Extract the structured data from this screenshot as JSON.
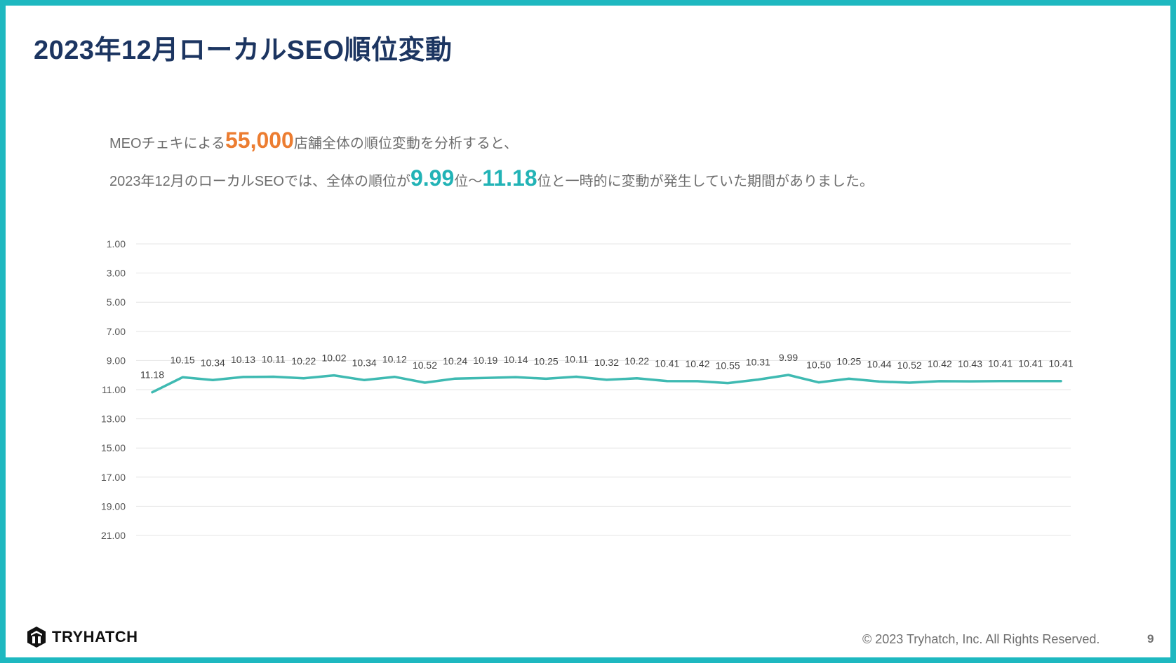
{
  "title": "2023年12月ローカルSEO順位変動",
  "lead": {
    "line1_pre": "MEOチェキによる",
    "line1_highlight": "55,000",
    "line1_post": "店舗全体の順位変動を分析すると、",
    "line2_pre": "2023年12月のローカルSEOでは、全体の順位が",
    "line2_min": "9.99",
    "line2_mid": "位～",
    "line2_max": "11.18",
    "line2_post": "位と一時的に変動が発生していた期間がありました。"
  },
  "colors": {
    "frame": "#1eb8c0",
    "title": "#1c3561",
    "highlight_orange": "#ec7d31",
    "highlight_teal": "#22b3b6",
    "line": "#3fbab2"
  },
  "chart_data": {
    "type": "line",
    "y_reversed": true,
    "ylim": [
      1,
      21
    ],
    "y_ticks": [
      "1.00",
      "3.00",
      "5.00",
      "7.00",
      "9.00",
      "11.00",
      "13.00",
      "15.00",
      "17.00",
      "19.00",
      "21.00"
    ],
    "grid": true,
    "series": [
      {
        "values": [
          11.18,
          10.15,
          10.34,
          10.13,
          10.11,
          10.22,
          10.02,
          10.34,
          10.12,
          10.52,
          10.24,
          10.19,
          10.14,
          10.25,
          10.11,
          10.32,
          10.22,
          10.41,
          10.42,
          10.55,
          10.31,
          9.99,
          10.5,
          10.25,
          10.44,
          10.52,
          10.42,
          10.43,
          10.41,
          10.41,
          10.41
        ],
        "labels": [
          "11.18",
          "10.15",
          "10.34",
          "10.13",
          "10.11",
          "10.22",
          "10.02",
          "10.34",
          "10.12",
          "10.52",
          "10.24",
          "10.19",
          "10.14",
          "10.25",
          "10.11",
          "10.32",
          "10.22",
          "10.41",
          "10.42",
          "10.55",
          "10.31",
          "9.99",
          "10.50",
          "10.25",
          "10.44",
          "10.52",
          "10.42",
          "10.43",
          "10.41",
          "10.41",
          "10.41"
        ]
      }
    ]
  },
  "footer": {
    "logo_text": "TRYHATCH",
    "logo_icon": "tryhatch-logo-icon",
    "copyright": "© 2023 Tryhatch, Inc. All Rights Reserved.",
    "page_number": "9"
  }
}
